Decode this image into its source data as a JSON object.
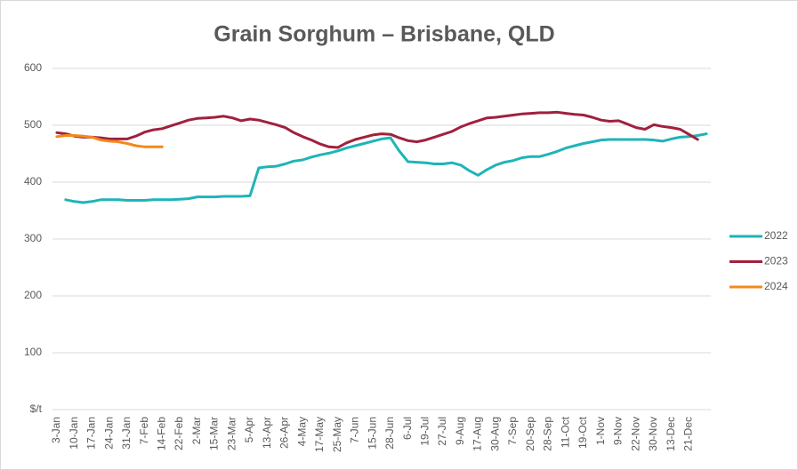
{
  "chart_data": {
    "type": "line",
    "title": "Grain Sorghum – Brisbane, QLD",
    "categories": [
      "3-Jan",
      null,
      "10-Jan",
      null,
      "17-Jan",
      null,
      "24-Jan",
      null,
      "31-Jan",
      null,
      "7-Feb",
      null,
      "14-Feb",
      null,
      "22-Feb",
      null,
      "2-Mar",
      null,
      "15-Mar",
      null,
      "23-Mar",
      null,
      "5-Apr",
      null,
      "13-Apr",
      null,
      "26-Apr",
      null,
      "4-May",
      null,
      "17-May",
      null,
      "25-May",
      null,
      "7-Jun",
      null,
      "15-Jun",
      null,
      "28-Jun",
      null,
      "6-Jul",
      null,
      "19-Jul",
      null,
      "27-Jul",
      null,
      "9-Aug",
      null,
      "17-Aug",
      null,
      "30-Aug",
      null,
      "7-Sep",
      null,
      "20-Sep",
      null,
      "28-Sep",
      null,
      "11-Oct",
      null,
      "19-Oct",
      null,
      "1-Nov",
      null,
      "9-Nov",
      null,
      "22-Nov",
      null,
      "30-Nov",
      null,
      "13-Dec",
      null,
      "21-Dec",
      null,
      null
    ],
    "series": [
      {
        "name": "2022",
        "color": "#1eb4b8",
        "values": [
          null,
          369,
          366,
          364,
          366,
          369,
          369,
          369,
          368,
          368,
          368,
          369,
          369,
          369,
          370,
          371,
          374,
          374,
          374,
          375,
          375,
          375,
          376,
          425,
          427,
          428,
          432,
          437,
          439,
          444,
          448,
          451,
          455,
          460,
          464,
          468,
          472,
          476,
          478,
          455,
          436,
          435,
          434,
          432,
          432,
          434,
          430,
          420,
          412,
          422,
          430,
          435,
          438,
          443,
          445,
          445,
          449,
          454,
          460,
          464,
          468,
          471,
          474,
          475,
          475,
          475,
          475,
          475,
          474,
          472,
          476,
          479,
          480,
          482,
          485
        ]
      },
      {
        "name": "2023",
        "color": "#a0213d",
        "values": [
          487,
          485,
          481,
          479,
          479,
          478,
          476,
          476,
          476,
          481,
          488,
          492,
          494,
          499,
          504,
          509,
          512,
          513,
          514,
          516,
          513,
          508,
          511,
          509,
          505,
          501,
          496,
          487,
          480,
          474,
          467,
          462,
          461,
          469,
          475,
          479,
          483,
          485,
          484,
          478,
          473,
          471,
          474,
          479,
          484,
          489,
          497,
          503,
          508,
          513,
          514,
          516,
          518,
          520,
          521,
          522,
          522,
          523,
          521,
          519,
          518,
          514,
          509,
          507,
          508,
          502,
          496,
          493,
          501,
          498,
          496,
          493,
          484,
          475,
          null
        ]
      },
      {
        "name": "2024",
        "color": "#f28a1a",
        "values": [
          480,
          482,
          482,
          481,
          479,
          474,
          472,
          471,
          468,
          464,
          462,
          462,
          462,
          null,
          null,
          null,
          null,
          null,
          null,
          null,
          null,
          null,
          null,
          null,
          null,
          null,
          null,
          null,
          null,
          null,
          null,
          null,
          null,
          null,
          null,
          null,
          null,
          null,
          null,
          null,
          null,
          null,
          null,
          null,
          null,
          null,
          null,
          null,
          null,
          null,
          null,
          null,
          null,
          null,
          null,
          null,
          null,
          null,
          null,
          null,
          null,
          null,
          null,
          null,
          null,
          null,
          null,
          null,
          null,
          null,
          null,
          null,
          null,
          null,
          null
        ]
      }
    ],
    "ylim": [
      0,
      600
    ],
    "yticks": [
      {
        "value": 0,
        "label": "$/t"
      },
      100,
      200,
      300,
      400,
      500,
      600
    ],
    "grid": true,
    "legend": "right"
  }
}
